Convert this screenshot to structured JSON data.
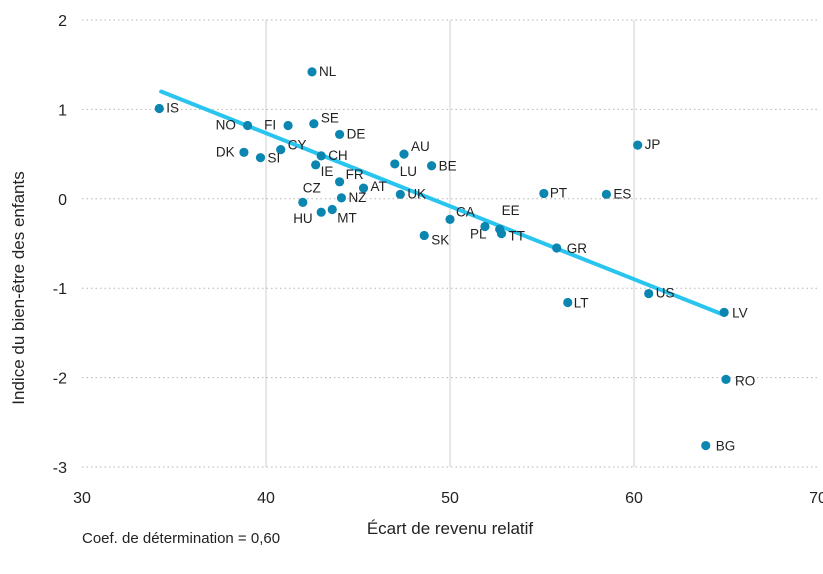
{
  "chart_data": {
    "type": "scatter",
    "xlabel": "Écart de revenu relatif",
    "ylabel": "Indice du bien-être des enfants",
    "xlim": [
      30,
      70
    ],
    "ylim": [
      -3,
      2
    ],
    "x_ticks": [
      "30",
      "40",
      "50",
      "60",
      "70"
    ],
    "y_ticks": [
      "2",
      "1",
      "0",
      "-1",
      "-2",
      "-3"
    ],
    "grid": {
      "vertical": "solid",
      "horizontal": "dotted"
    },
    "point_color": "#0b86b0",
    "trend_color": "#29c5ef",
    "trendline": {
      "x": [
        34.3,
        64.9
      ],
      "y": [
        1.2,
        -1.3
      ]
    },
    "points": [
      {
        "label": "NL",
        "x": 42.5,
        "y": 1.42
      },
      {
        "label": "IS",
        "x": 34.2,
        "y": 1.01
      },
      {
        "label": "NO",
        "x": 39.0,
        "y": 0.82
      },
      {
        "label": "FI",
        "x": 41.2,
        "y": 0.82
      },
      {
        "label": "SE",
        "x": 42.6,
        "y": 0.84
      },
      {
        "label": "DE",
        "x": 44.0,
        "y": 0.72
      },
      {
        "label": "CY",
        "x": 40.8,
        "y": 0.55
      },
      {
        "label": "DK",
        "x": 38.8,
        "y": 0.52
      },
      {
        "label": "SI",
        "x": 39.7,
        "y": 0.46
      },
      {
        "label": "CH",
        "x": 43.0,
        "y": 0.48
      },
      {
        "label": "AU",
        "x": 47.5,
        "y": 0.5
      },
      {
        "label": "IE",
        "x": 42.7,
        "y": 0.38
      },
      {
        "label": "LU",
        "x": 47.0,
        "y": 0.39
      },
      {
        "label": "BE",
        "x": 49.0,
        "y": 0.37
      },
      {
        "label": "FR",
        "x": 44.0,
        "y": 0.19
      },
      {
        "label": "AT",
        "x": 45.3,
        "y": 0.12
      },
      {
        "label": "CZ",
        "x": 42.0,
        "y": -0.04
      },
      {
        "label": "NZ",
        "x": 44.1,
        "y": 0.01
      },
      {
        "label": "UK",
        "x": 47.3,
        "y": 0.05
      },
      {
        "label": "HU",
        "x": 43.0,
        "y": -0.15
      },
      {
        "label": "MT",
        "x": 43.6,
        "y": -0.12
      },
      {
        "label": "CA",
        "x": 50.0,
        "y": -0.23
      },
      {
        "label": "SK",
        "x": 48.6,
        "y": -0.41
      },
      {
        "label": "PL",
        "x": 51.9,
        "y": -0.31
      },
      {
        "label": "EE",
        "x": 52.7,
        "y": -0.34
      },
      {
        "label": "TT",
        "x": 52.8,
        "y": -0.39
      },
      {
        "label": "PT",
        "x": 55.1,
        "y": 0.06
      },
      {
        "label": "ES",
        "x": 58.5,
        "y": 0.05
      },
      {
        "label": "JP",
        "x": 60.2,
        "y": 0.6
      },
      {
        "label": "GR",
        "x": 55.8,
        "y": -0.55
      },
      {
        "label": "LT",
        "x": 56.4,
        "y": -1.16
      },
      {
        "label": "US",
        "x": 60.8,
        "y": -1.06
      },
      {
        "label": "LV",
        "x": 64.9,
        "y": -1.27
      },
      {
        "label": "RO",
        "x": 65.0,
        "y": -2.02
      },
      {
        "label": "BG",
        "x": 63.9,
        "y": -2.76
      }
    ]
  },
  "note": "Coef. de détermination = 0,60"
}
